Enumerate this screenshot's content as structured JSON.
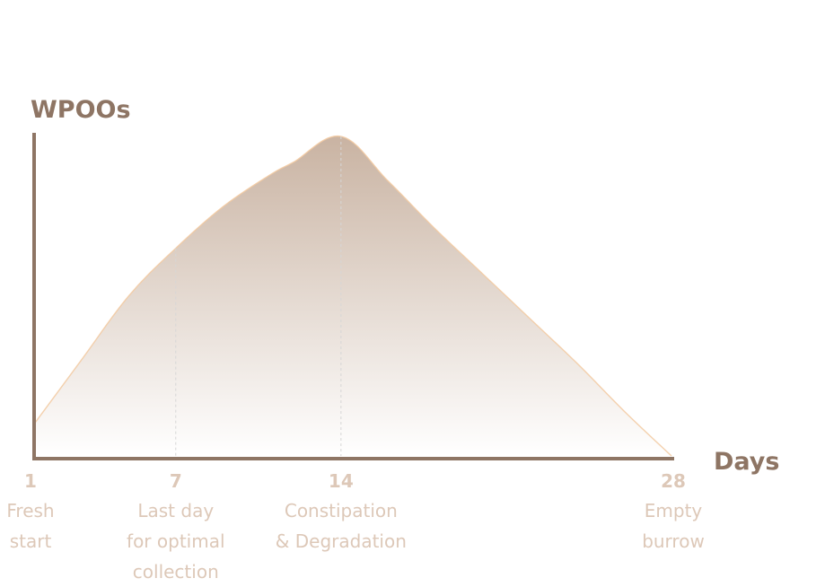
{
  "chart_data": {
    "type": "area",
    "ylabel": "WPOOs",
    "xlabel": "Days",
    "xlim": [
      1,
      28
    ],
    "ylim": [
      0,
      100
    ],
    "grid": false,
    "series": [
      {
        "x": [
          1,
          3,
          5,
          7,
          9,
          11,
          12,
          14,
          16,
          18,
          20,
          22,
          24,
          26,
          28
        ],
        "y": [
          10,
          30,
          50,
          65,
          78,
          88,
          92,
          100,
          86,
          71,
          57,
          43,
          29,
          14,
          0
        ]
      }
    ],
    "ticks": [
      {
        "x": 1,
        "label": "1",
        "desc": [
          "Fresh",
          "start"
        ]
      },
      {
        "x": 7,
        "label": "7",
        "desc": [
          "Last day",
          "for optimal",
          "collection"
        ]
      },
      {
        "x": 14,
        "label": "14",
        "desc": [
          "Constipation",
          "& Degradation"
        ]
      },
      {
        "x": 28,
        "label": "28",
        "desc": [
          "Empty",
          "burrow"
        ]
      }
    ],
    "markers": [
      7,
      14
    ],
    "colors": {
      "axis": "#8e7564",
      "area_top": "#c9b3a2",
      "area_bottom": "#ffffff",
      "edge": "#f2c9a0",
      "marker": "#d6d6d6",
      "tick_text": "#ddc8b8",
      "axis_title": "#8e7564"
    }
  }
}
